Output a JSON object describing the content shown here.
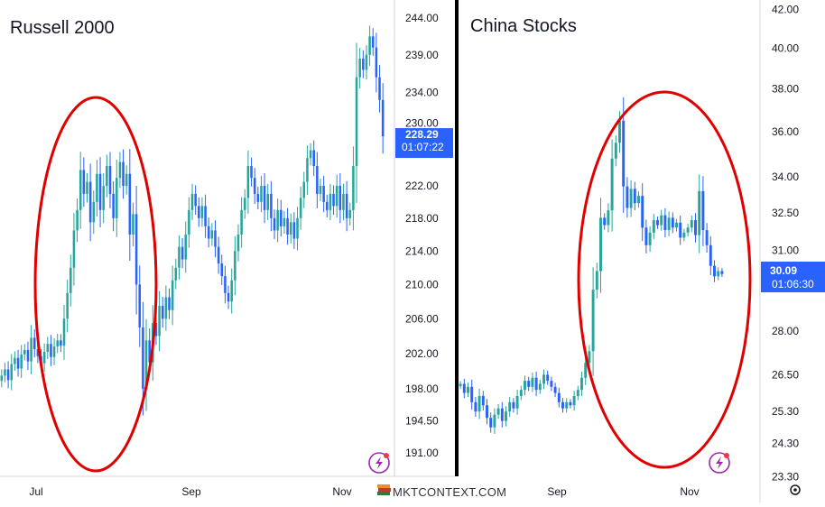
{
  "colors": {
    "up": "#26a69a",
    "down": "#2962ff",
    "price_tag": "#2962ff",
    "highlight_ellipse": "#e00000",
    "divider": "#000000",
    "axis_text": "#131722",
    "grid_axis_line": "#d1d4dc",
    "lightning_icon": "#9c27b0"
  },
  "brand": {
    "label": "MKTCONTEXT.COM",
    "icon": "stack-of-books-icon"
  },
  "chart_data": [
    {
      "type": "candlestick",
      "title": "Russell 2000",
      "xlabel": "",
      "ylabel": "",
      "x_ticks": [
        "Jul",
        "Sep",
        "Nov"
      ],
      "y_ticks": [
        "244.00",
        "239.00",
        "234.00",
        "230.00",
        "222.00",
        "218.00",
        "214.00",
        "210.00",
        "206.00",
        "202.00",
        "198.00",
        "194.50",
        "191.00"
      ],
      "y_scale": "log",
      "ylim": [
        188.5,
        246.5
      ],
      "last_price": {
        "value": "228.29",
        "countdown": "01:07:22"
      },
      "grid": false,
      "annotation": "red ellipse around July–August swing",
      "closes": [
        199.5,
        200.2,
        199.0,
        200.8,
        201.5,
        200.3,
        201.9,
        202.4,
        201.1,
        203.8,
        202.5,
        201.7,
        200.9,
        202.2,
        203.1,
        201.6,
        202.8,
        203.5,
        202.9,
        206.0,
        209.0,
        212.0,
        216.5,
        219.0,
        224.0,
        221.0,
        222.5,
        217.5,
        220.0,
        223.5,
        219.0,
        222.0,
        224.5,
        221.0,
        218.0,
        223.0,
        225.0,
        222.0,
        223.5,
        216.0,
        218.5,
        210.0,
        205.0,
        198.0,
        203.5,
        201.0,
        205.5,
        204.0,
        207.5,
        206.0,
        208.5,
        207.0,
        210.5,
        212.0,
        214.5,
        213.0,
        216.0,
        219.0,
        221.0,
        219.5,
        218.0,
        219.5,
        217.0,
        215.5,
        216.5,
        214.5,
        212.5,
        211.0,
        209.0,
        208.0,
        210.5,
        214.0,
        216.0,
        219.0,
        220.5,
        224.5,
        223.0,
        221.0,
        220.0,
        222.0,
        219.0,
        221.0,
        218.0,
        216.5,
        219.0,
        217.0,
        218.0,
        216.0,
        217.5,
        215.5,
        218.0,
        220.5,
        222.5,
        225.5,
        226.5,
        224.5,
        221.0,
        222.0,
        220.0,
        219.0,
        221.0,
        219.5,
        222.0,
        219.0,
        221.0,
        218.0,
        219.0,
        224.5,
        236.0,
        238.5,
        237.0,
        239.0,
        241.5,
        240.0,
        236.0,
        233.0,
        228.29
      ]
    },
    {
      "type": "candlestick",
      "title": "China Stocks",
      "xlabel": "",
      "ylabel": "",
      "x_ticks": [
        "Sep",
        "Nov"
      ],
      "y_ticks": [
        "42.00",
        "40.00",
        "38.00",
        "36.00",
        "34.00",
        "32.50",
        "31.00",
        "30.09",
        "28.00",
        "26.50",
        "25.30",
        "24.30",
        "23.30"
      ],
      "y_scale": "log",
      "ylim": [
        23.0,
        42.5
      ],
      "last_price": {
        "value": "30.09",
        "countdown": "01:06:30"
      },
      "grid": false,
      "annotation": "red ellipse around September–November rally",
      "closes": [
        26.2,
        25.9,
        26.1,
        25.6,
        25.3,
        25.8,
        25.5,
        25.1,
        24.8,
        25.2,
        25.4,
        25.0,
        25.3,
        25.6,
        25.4,
        25.8,
        26.0,
        26.3,
        26.1,
        26.4,
        26.0,
        26.2,
        26.5,
        26.3,
        26.1,
        25.9,
        25.6,
        25.4,
        25.6,
        25.5,
        25.8,
        26.0,
        26.4,
        26.9,
        27.3,
        29.5,
        30.2,
        32.3,
        32.0,
        32.6,
        34.8,
        35.5,
        36.5,
        33.6,
        32.7,
        33.5,
        32.9,
        33.2,
        31.9,
        31.2,
        31.7,
        32.2,
        32.0,
        32.4,
        31.8,
        32.3,
        31.9,
        32.1,
        31.5,
        31.7,
        31.9,
        32.2,
        31.6,
        33.4,
        31.8,
        31.2,
        30.4,
        30.0,
        30.2,
        30.09
      ]
    }
  ]
}
